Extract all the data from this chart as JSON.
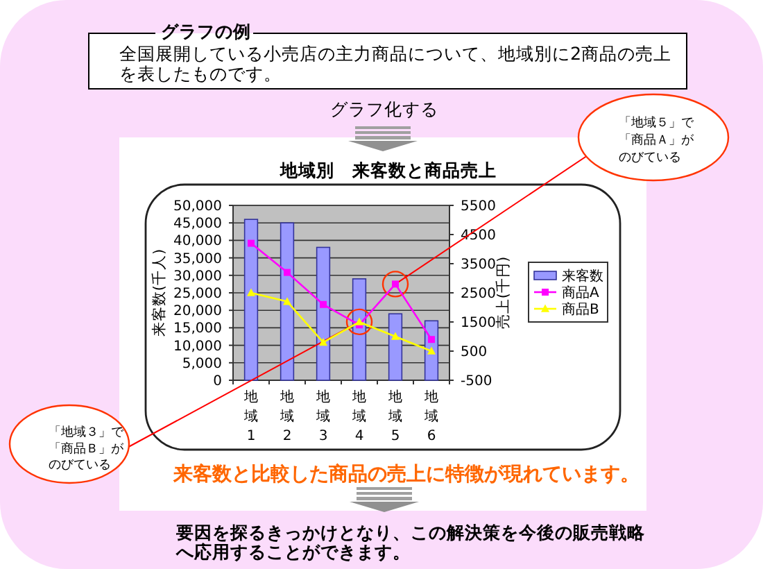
{
  "chart_data": {
    "type": "bar",
    "title": "地域別　来客数と商品売上",
    "ylabel": "来客数(千人)",
    "y2label": "売上(千円)",
    "categories": [
      "地域1",
      "地域2",
      "地域3",
      "地域4",
      "地域5",
      "地域6"
    ],
    "series": [
      {
        "name": "来客数",
        "color": "#9999ff",
        "values": [
          46000,
          45000,
          38000,
          29000,
          19000,
          17000
        ]
      },
      {
        "name": "商品A",
        "type": "line",
        "axis": "y2",
        "color": "#ff00ff",
        "marker": "square",
        "values": [
          4200,
          3200,
          2100,
          1400,
          2800,
          900
        ]
      },
      {
        "name": "商品B",
        "type": "line",
        "axis": "y2",
        "color": "#ffff00",
        "marker": "triangle",
        "values": [
          2500,
          2200,
          800,
          1500,
          1000,
          500
        ]
      }
    ],
    "ylim": [
      0,
      50000
    ],
    "yticks": [
      0,
      {
        "value": 5000,
        "label": "5,000"
      },
      {
        "value": 10000,
        "label": "10,000"
      },
      {
        "value": 15000,
        "label": "15,000"
      },
      {
        "value": 20000,
        "label": "20,000"
      },
      {
        "value": 25000,
        "label": "25,000"
      },
      {
        "value": 30000,
        "label": "30,000"
      },
      {
        "value": 35000,
        "label": "35,000"
      },
      {
        "value": 40000,
        "label": "40,000"
      },
      {
        "value": 45000,
        "label": "45,000"
      },
      {
        "value": 50000,
        "label": "50,000"
      }
    ],
    "y2lim": [
      -500,
      5500
    ],
    "y2ticks": [
      -500,
      500,
      1500,
      2500,
      3500,
      4500,
      5500
    ],
    "grid": "y",
    "legend": "right",
    "annotations": [
      "グラフの例",
      "全国展開している小売店の主力商品について、地域別に2商品の売上を表したものです。",
      "グラフ化する",
      {
        "text": "「地域５」で「商品Ａ」がのびている",
        "x": "地域5",
        "y": 27500
      },
      {
        "text": "「地域３」で「商品Ｂ」がのびている",
        "x": "地域4",
        "y": 16700
      },
      "来客数と比較した商品の売上に特徴が現れています。",
      "要因を探るきっかけとなり、この解決策を今後の販売戦略へ応用することができます。"
    ]
  }
}
